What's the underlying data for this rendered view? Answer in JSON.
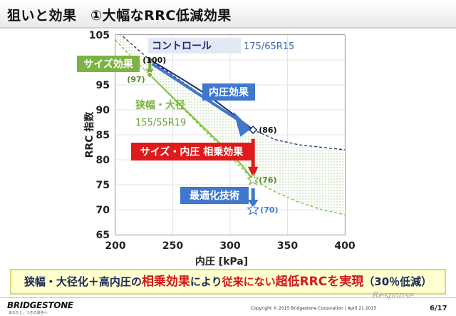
{
  "page": {
    "title": "狙いと効果　①大幅なRRC低減効果",
    "banner": {
      "p1": "狭幅・大径化＋高内圧の",
      "p2": "相乗効果",
      "p3": "により",
      "p4": "従来にない",
      "p5": "超低RRCを実現",
      "p6": "（30％低減）"
    },
    "footer": {
      "logo": "BRIDGESTONE",
      "logo_sub": "あなたと、つぎの景色へ",
      "copyright": "Copyright © 2015 Bridgestone Corporation  |  April 21  2015",
      "page": "6/17",
      "watermark": "Response."
    }
  },
  "chart_data": {
    "type": "line",
    "xlabel": "内圧 [kPa]",
    "ylabel": "RRC 指数",
    "xlim": [
      200,
      400
    ],
    "ylim": [
      65,
      105
    ],
    "xticks": [
      200,
      250,
      300,
      350,
      400
    ],
    "yticks": [
      65,
      70,
      75,
      80,
      85,
      90,
      95,
      100,
      105
    ],
    "series": [
      {
        "name": "コントロール",
        "size": "175/65R15",
        "color": "#1f2a6e",
        "x": [
          230,
          240,
          260,
          280,
          300,
          320
        ],
        "y": [
          100,
          98.7,
          95.9,
          93.0,
          89.6,
          86
        ],
        "ext_x": [
          190,
          200,
          210,
          220,
          230,
          320,
          340,
          360,
          380,
          400
        ],
        "ext_y": [
          108,
          106,
          104,
          102,
          100,
          86,
          84,
          83,
          82.5,
          82
        ]
      },
      {
        "name": "狭幅・大径",
        "size": "155/55R19",
        "color": "#7fbf3f",
        "x": [
          230,
          250,
          270,
          290,
          310,
          320
        ],
        "y": [
          97,
          92.5,
          88,
          83.5,
          79,
          76
        ],
        "ext_x": [
          190,
          200,
          210,
          220,
          230,
          320,
          340,
          360,
          380,
          400
        ],
        "ext_y": [
          106,
          104,
          101.5,
          99.2,
          97,
          76,
          73.5,
          71.5,
          70,
          69
        ]
      }
    ],
    "points": [
      {
        "x": 230,
        "y": 100,
        "label": "(100)"
      },
      {
        "x": 230,
        "y": 97,
        "label": "(97)"
      },
      {
        "x": 320,
        "y": 86,
        "label": "(86)"
      },
      {
        "x": 320,
        "y": 76,
        "label": "(76)"
      },
      {
        "x": 320,
        "y": 70,
        "label": "(70)"
      }
    ],
    "callouts": {
      "size_effect": "サイズ効果",
      "pressure_effect": "内圧効果",
      "synergy": "サイズ・内圧 相乗効果",
      "optimization": "最適化技術"
    },
    "colors": {
      "navy": "#1f2a6e",
      "green": "#7fbf3f",
      "red": "#e01a1a",
      "blue_arrow": "#3f78cc",
      "callout_green": "#7cb342",
      "callout_red": "#e01a1a",
      "callout_blue": "#3f78cc"
    }
  }
}
